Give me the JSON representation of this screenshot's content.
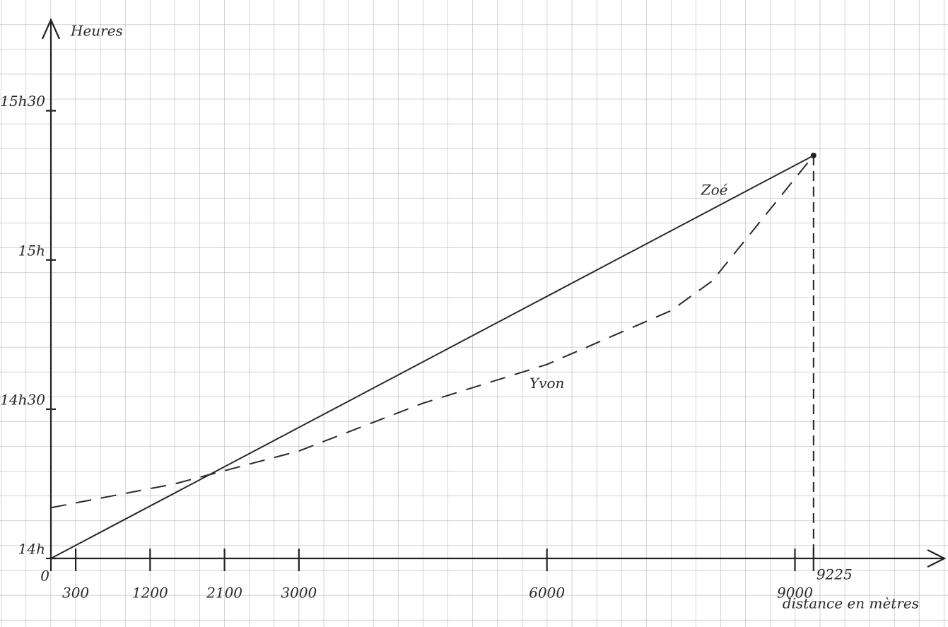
{
  "chart_data": {
    "type": "line",
    "y_label": "Heures",
    "x_label": "distance en mètres",
    "xlim": [
      0,
      10800
    ],
    "ylim": [
      14,
      15.8
    ],
    "xticks": [
      0,
      300,
      1200,
      2100,
      3000,
      6000,
      9000,
      9225
    ],
    "yticks": [
      {
        "value": 14,
        "label": "14h"
      },
      {
        "value": 14.5,
        "label": "14h30"
      },
      {
        "value": 15,
        "label": "15h"
      },
      {
        "value": 15.5,
        "label": "15h30"
      }
    ],
    "series": [
      {
        "name": "Zoé",
        "color": "#2a2a2a",
        "dash": false,
        "x": [
          0,
          9225
        ],
        "values": [
          14,
          15.35
        ]
      },
      {
        "name": "Yvon",
        "color": "#2a2a2a",
        "dash": true,
        "x": [
          0,
          1500,
          3000,
          4500,
          6000,
          7500,
          8000,
          9225
        ],
        "values": [
          14.17,
          14.25,
          14.36,
          14.52,
          14.65,
          14.83,
          14.93,
          15.35
        ]
      }
    ]
  }
}
